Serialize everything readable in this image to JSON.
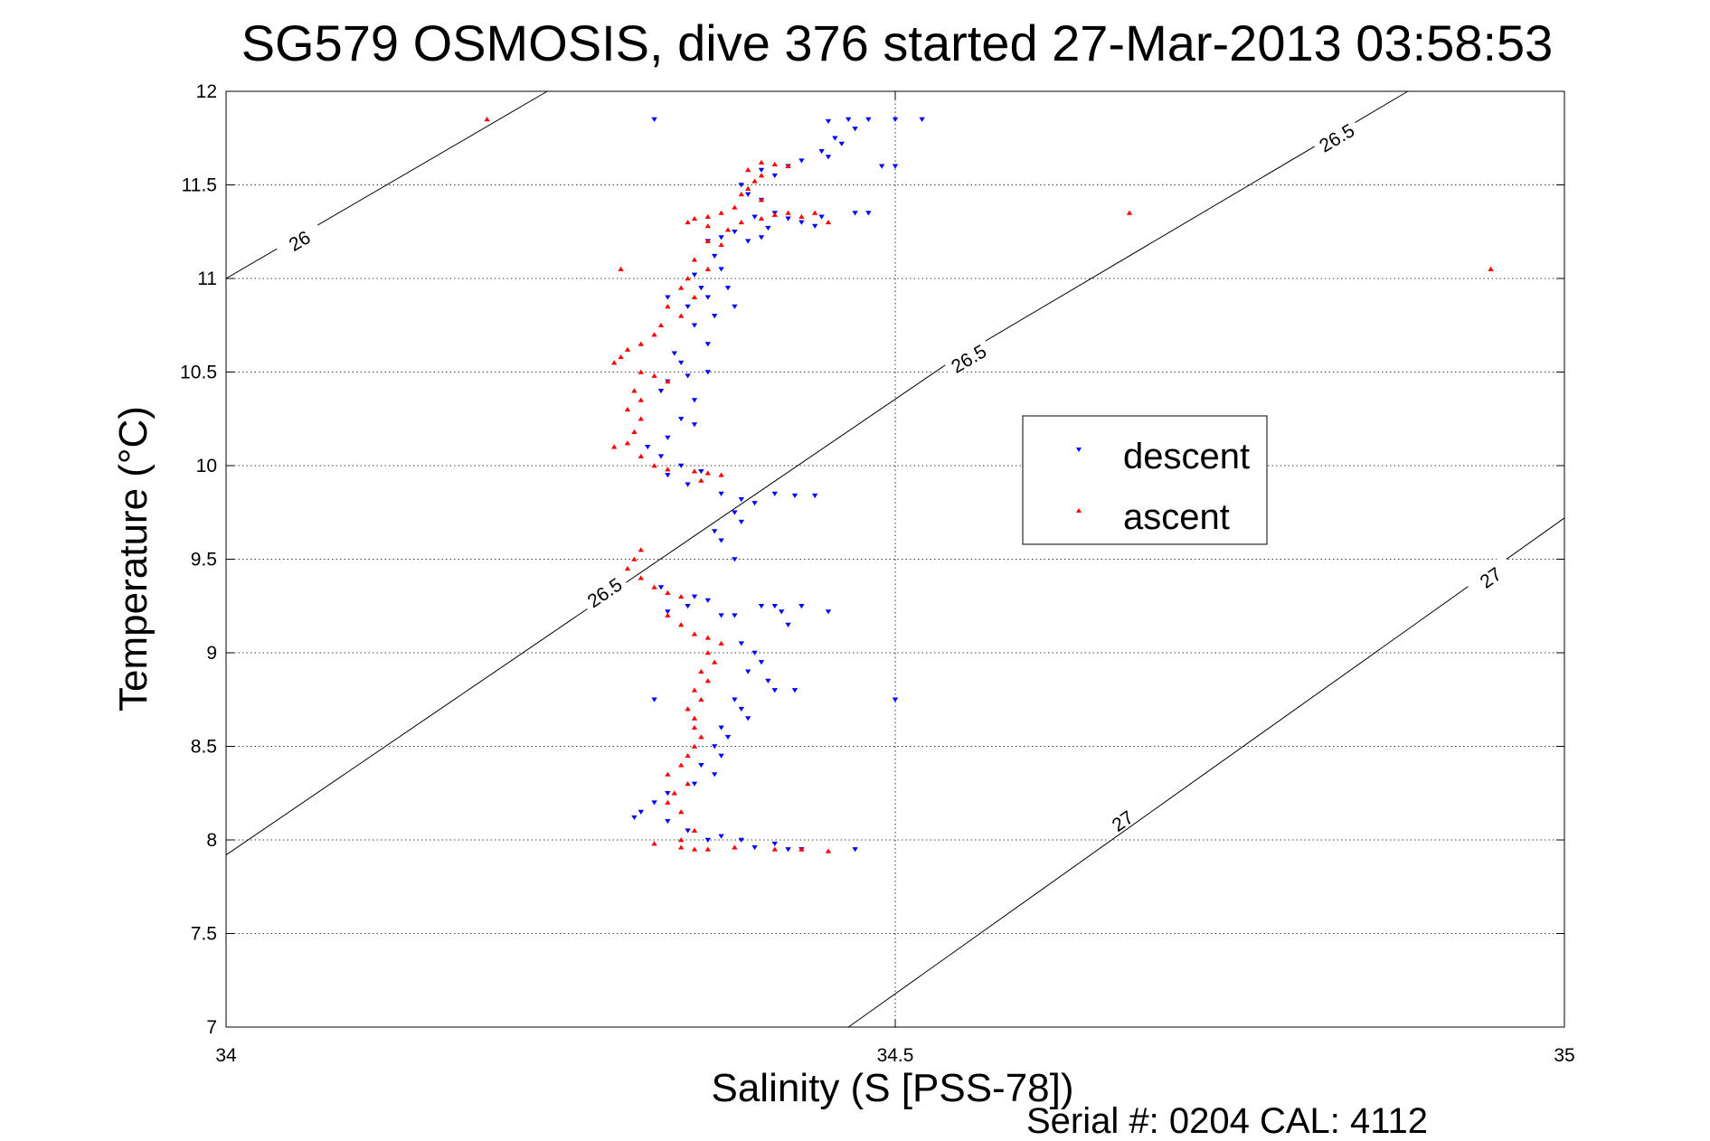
{
  "chart_data": {
    "type": "scatter",
    "title": "SG579 OSMOSIS, dive 376 started 27-Mar-2013 03:58:53",
    "xlabel": "Salinity (S [PSS-78])",
    "ylabel": "Temperature (°C)",
    "xlim": [
      34,
      35
    ],
    "ylim": [
      7,
      12
    ],
    "xticks": [
      "34",
      "34.5",
      "35"
    ],
    "yticks": [
      "7",
      "7.5",
      "8",
      "8.5",
      "9",
      "9.5",
      "10",
      "10.5",
      "11",
      "11.5",
      "12"
    ],
    "grid": true,
    "legend_position": "right",
    "footer": "Serial #: 0204  CAL: 4112",
    "density_contours": [
      {
        "label": "26",
        "points": [
          [
            34.0,
            11.0
          ],
          [
            34.24,
            12.0
          ]
        ],
        "label_positions": [
          [
            34.055,
            11.2
          ]
        ]
      },
      {
        "label": "26.5",
        "points": [
          [
            34.0,
            7.92
          ],
          [
            34.54,
            10.55
          ],
          [
            34.883,
            12.0
          ]
        ],
        "label_positions": [
          [
            34.283,
            9.32
          ],
          [
            34.555,
            10.57
          ],
          [
            34.83,
            11.75
          ]
        ]
      },
      {
        "label": "27",
        "points": [
          [
            34.465,
            7.0
          ],
          [
            35.0,
            9.72
          ]
        ],
        "label_positions": [
          [
            34.67,
            8.1
          ],
          [
            34.945,
            9.4
          ]
        ]
      }
    ],
    "series": [
      {
        "name": "descent",
        "marker": "triangle-down",
        "color": "#0000ff",
        "points": [
          [
            34.32,
            11.85
          ],
          [
            34.45,
            11.84
          ],
          [
            34.465,
            11.85
          ],
          [
            34.48,
            11.85
          ],
          [
            34.5,
            11.85
          ],
          [
            34.52,
            11.85
          ],
          [
            34.47,
            11.8
          ],
          [
            34.455,
            11.75
          ],
          [
            34.46,
            11.72
          ],
          [
            34.445,
            11.68
          ],
          [
            34.45,
            11.65
          ],
          [
            34.43,
            11.63
          ],
          [
            34.42,
            11.6
          ],
          [
            34.49,
            11.6
          ],
          [
            34.5,
            11.6
          ],
          [
            34.4,
            11.58
          ],
          [
            34.41,
            11.55
          ],
          [
            34.385,
            11.5
          ],
          [
            34.39,
            11.45
          ],
          [
            34.4,
            11.42
          ],
          [
            34.41,
            11.35
          ],
          [
            34.395,
            11.33
          ],
          [
            34.42,
            11.32
          ],
          [
            34.43,
            11.3
          ],
          [
            34.44,
            11.28
          ],
          [
            34.445,
            11.33
          ],
          [
            34.47,
            11.35
          ],
          [
            34.48,
            11.35
          ],
          [
            34.405,
            11.27
          ],
          [
            34.38,
            11.25
          ],
          [
            34.37,
            11.22
          ],
          [
            34.36,
            11.2
          ],
          [
            34.39,
            11.2
          ],
          [
            34.4,
            11.22
          ],
          [
            34.365,
            11.12
          ],
          [
            34.37,
            11.05
          ],
          [
            34.35,
            11.02
          ],
          [
            34.355,
            10.95
          ],
          [
            34.36,
            10.9
          ],
          [
            34.375,
            10.95
          ],
          [
            34.33,
            10.9
          ],
          [
            34.345,
            10.85
          ],
          [
            34.365,
            10.8
          ],
          [
            34.35,
            10.75
          ],
          [
            34.38,
            10.85
          ],
          [
            34.36,
            10.65
          ],
          [
            34.335,
            10.6
          ],
          [
            34.34,
            10.55
          ],
          [
            34.345,
            10.48
          ],
          [
            34.36,
            10.5
          ],
          [
            34.33,
            10.45
          ],
          [
            34.325,
            10.4
          ],
          [
            34.35,
            10.35
          ],
          [
            34.34,
            10.25
          ],
          [
            34.35,
            10.22
          ],
          [
            34.33,
            10.15
          ],
          [
            34.315,
            10.1
          ],
          [
            34.325,
            10.05
          ],
          [
            34.34,
            10.0
          ],
          [
            34.355,
            9.97
          ],
          [
            34.33,
            9.95
          ],
          [
            34.345,
            9.9
          ],
          [
            34.37,
            9.85
          ],
          [
            34.385,
            9.82
          ],
          [
            34.395,
            9.8
          ],
          [
            34.41,
            9.85
          ],
          [
            34.425,
            9.84
          ],
          [
            34.44,
            9.84
          ],
          [
            34.38,
            9.75
          ],
          [
            34.385,
            9.7
          ],
          [
            34.365,
            9.65
          ],
          [
            34.37,
            9.6
          ],
          [
            34.38,
            9.5
          ],
          [
            34.325,
            9.35
          ],
          [
            34.35,
            9.3
          ],
          [
            34.36,
            9.28
          ],
          [
            34.345,
            9.25
          ],
          [
            34.33,
            9.22
          ],
          [
            34.37,
            9.2
          ],
          [
            34.38,
            9.2
          ],
          [
            34.4,
            9.25
          ],
          [
            34.41,
            9.25
          ],
          [
            34.415,
            9.22
          ],
          [
            34.42,
            9.15
          ],
          [
            34.45,
            9.22
          ],
          [
            34.43,
            9.25
          ],
          [
            34.385,
            9.05
          ],
          [
            34.395,
            9.0
          ],
          [
            34.4,
            8.95
          ],
          [
            34.39,
            8.9
          ],
          [
            34.405,
            8.85
          ],
          [
            34.41,
            8.8
          ],
          [
            34.425,
            8.8
          ],
          [
            34.38,
            8.75
          ],
          [
            34.32,
            8.75
          ],
          [
            34.385,
            8.7
          ],
          [
            34.39,
            8.65
          ],
          [
            34.37,
            8.6
          ],
          [
            34.375,
            8.55
          ],
          [
            34.365,
            8.5
          ],
          [
            34.37,
            8.45
          ],
          [
            34.355,
            8.4
          ],
          [
            34.365,
            8.35
          ],
          [
            34.35,
            8.3
          ],
          [
            34.33,
            8.25
          ],
          [
            34.32,
            8.2
          ],
          [
            34.31,
            8.15
          ],
          [
            34.305,
            8.12
          ],
          [
            34.33,
            8.1
          ],
          [
            34.345,
            8.05
          ],
          [
            34.36,
            8.0
          ],
          [
            34.37,
            8.02
          ],
          [
            34.385,
            8.0
          ],
          [
            34.395,
            7.96
          ],
          [
            34.41,
            7.98
          ],
          [
            34.42,
            7.95
          ],
          [
            34.43,
            7.95
          ],
          [
            34.47,
            7.95
          ],
          [
            34.5,
            8.75
          ]
        ]
      },
      {
        "name": "ascent",
        "marker": "triangle-up",
        "color": "#ff0000",
        "points": [
          [
            34.195,
            11.85
          ],
          [
            34.675,
            11.35
          ],
          [
            34.945,
            11.05
          ],
          [
            34.295,
            11.05
          ],
          [
            34.4,
            11.62
          ],
          [
            34.41,
            11.61
          ],
          [
            34.42,
            11.6
          ],
          [
            34.39,
            11.58
          ],
          [
            34.4,
            11.55
          ],
          [
            34.395,
            11.52
          ],
          [
            34.39,
            11.48
          ],
          [
            34.385,
            11.45
          ],
          [
            34.4,
            11.42
          ],
          [
            34.38,
            11.38
          ],
          [
            34.37,
            11.35
          ],
          [
            34.36,
            11.33
          ],
          [
            34.35,
            11.32
          ],
          [
            34.345,
            11.3
          ],
          [
            34.36,
            11.28
          ],
          [
            34.375,
            11.26
          ],
          [
            34.385,
            11.3
          ],
          [
            34.4,
            11.32
          ],
          [
            34.41,
            11.34
          ],
          [
            34.42,
            11.35
          ],
          [
            34.43,
            11.33
          ],
          [
            34.44,
            11.35
          ],
          [
            34.45,
            11.3
          ],
          [
            34.36,
            11.2
          ],
          [
            34.37,
            11.18
          ],
          [
            34.35,
            11.1
          ],
          [
            34.36,
            11.05
          ],
          [
            34.345,
            11.0
          ],
          [
            34.34,
            10.95
          ],
          [
            34.35,
            10.9
          ],
          [
            34.33,
            10.85
          ],
          [
            34.34,
            10.8
          ],
          [
            34.325,
            10.75
          ],
          [
            34.32,
            10.7
          ],
          [
            34.31,
            10.65
          ],
          [
            34.3,
            10.62
          ],
          [
            34.295,
            10.58
          ],
          [
            34.29,
            10.55
          ],
          [
            34.31,
            10.5
          ],
          [
            34.32,
            10.48
          ],
          [
            34.33,
            10.45
          ],
          [
            34.305,
            10.4
          ],
          [
            34.31,
            10.35
          ],
          [
            34.3,
            10.3
          ],
          [
            34.31,
            10.25
          ],
          [
            34.305,
            10.18
          ],
          [
            34.3,
            10.12
          ],
          [
            34.29,
            10.1
          ],
          [
            34.31,
            10.05
          ],
          [
            34.32,
            10.0
          ],
          [
            34.33,
            9.98
          ],
          [
            34.35,
            9.97
          ],
          [
            34.36,
            9.96
          ],
          [
            34.37,
            9.95
          ],
          [
            34.355,
            9.92
          ],
          [
            34.31,
            9.55
          ],
          [
            34.305,
            9.5
          ],
          [
            34.3,
            9.45
          ],
          [
            34.31,
            9.4
          ],
          [
            34.32,
            9.35
          ],
          [
            34.33,
            9.32
          ],
          [
            34.34,
            9.3
          ],
          [
            34.33,
            9.2
          ],
          [
            34.34,
            9.15
          ],
          [
            34.35,
            9.1
          ],
          [
            34.36,
            9.08
          ],
          [
            34.37,
            9.05
          ],
          [
            34.36,
            9.0
          ],
          [
            34.365,
            8.95
          ],
          [
            34.355,
            8.9
          ],
          [
            34.36,
            8.85
          ],
          [
            34.35,
            8.8
          ],
          [
            34.355,
            8.75
          ],
          [
            34.345,
            8.7
          ],
          [
            34.35,
            8.65
          ],
          [
            34.35,
            8.6
          ],
          [
            34.355,
            8.55
          ],
          [
            34.35,
            8.5
          ],
          [
            34.345,
            8.45
          ],
          [
            34.34,
            8.4
          ],
          [
            34.33,
            8.35
          ],
          [
            34.345,
            8.3
          ],
          [
            34.335,
            8.25
          ],
          [
            34.33,
            8.2
          ],
          [
            34.34,
            8.15
          ],
          [
            34.35,
            8.05
          ],
          [
            34.34,
            8.0
          ],
          [
            34.34,
            7.96
          ],
          [
            34.35,
            7.95
          ],
          [
            34.36,
            7.95
          ],
          [
            34.38,
            7.96
          ],
          [
            34.41,
            7.95
          ],
          [
            34.43,
            7.95
          ],
          [
            34.45,
            7.94
          ],
          [
            34.32,
            7.98
          ]
        ]
      }
    ]
  }
}
